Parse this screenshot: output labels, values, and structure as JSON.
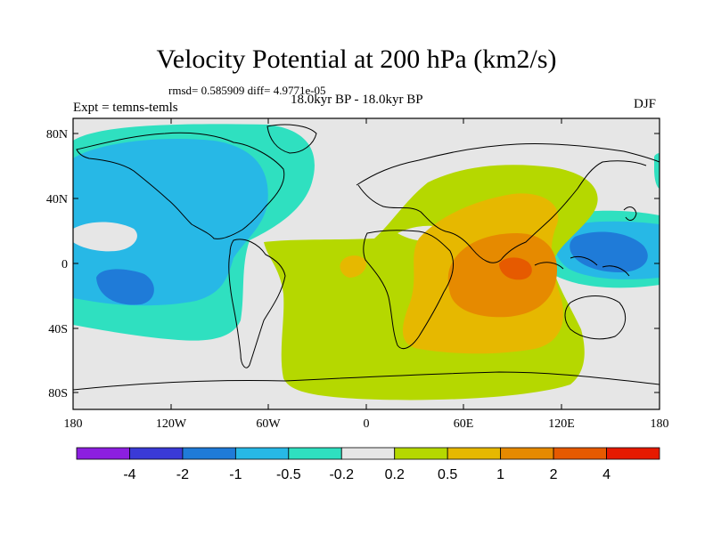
{
  "title": "Velocity Potential at 200 hPa (km2/s)",
  "stats": "rmsd= 0.585909 diff= 4.9771e-05",
  "period": "18.0kyr BP - 18.0kyr BP",
  "experiment": "Expt = temns-temls",
  "season": "DJF",
  "axes": {
    "y_ticks": [
      "80N",
      "40N",
      "0",
      "40S",
      "80S"
    ],
    "x_ticks": [
      "180",
      "120W",
      "60W",
      "0",
      "60E",
      "120E",
      "180"
    ]
  },
  "colorbar": {
    "colors": [
      "#8c1fe0",
      "#3a3ad6",
      "#1f7bd8",
      "#27b8e6",
      "#2fe0c0",
      "#e6e6e6",
      "#b5d800",
      "#e6b800",
      "#e68a00",
      "#e65a00",
      "#e61a00"
    ],
    "labels": [
      "-4",
      "-2",
      "-1",
      "-0.5",
      "-0.2",
      "0.2",
      "0.5",
      "1",
      "2",
      "4"
    ]
  },
  "palette": {
    "background": "#e6e6e6",
    "neg_strong": "#1f7bd8",
    "neg_mid": "#27b8e6",
    "neg_weak": "#2fe0c0",
    "pos_weak": "#b5d800",
    "pos_mid": "#e6b800",
    "pos_strong": "#e68a00",
    "pos_max": "#e65a00"
  }
}
